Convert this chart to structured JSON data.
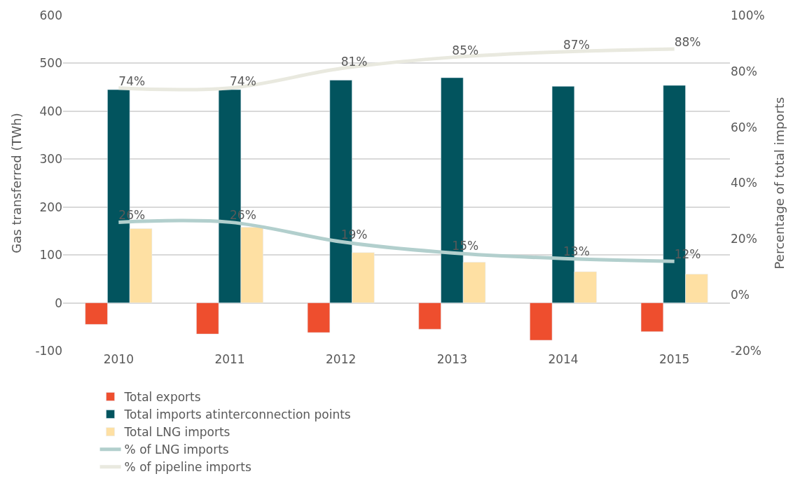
{
  "chart_data": {
    "type": "bar",
    "ylabel": "Gas transferred (TWh)",
    "y2label": "Percentage of total imports",
    "categories": [
      "2010",
      "2011",
      "2012",
      "2013",
      "2014",
      "2015"
    ],
    "series": [
      {
        "name": "Total exports",
        "color": "#ee4e2e",
        "values": [
          -45,
          -65,
          -62,
          -55,
          -78,
          -60
        ]
      },
      {
        "name": "Total imports atinterconnection points",
        "color": "#02545e",
        "values": [
          445,
          445,
          465,
          470,
          452,
          454
        ]
      },
      {
        "name": "Total LNG imports",
        "color": "#fee0a3",
        "values": [
          155,
          158,
          105,
          85,
          65,
          60
        ]
      },
      {
        "name": "% of LNG imports",
        "type": "line",
        "axis": "y2",
        "color": "#b2cfcd",
        "values": [
          26,
          26,
          19,
          15,
          13,
          12
        ],
        "value_labels": [
          "26%",
          "26%",
          "19%",
          "15%",
          "13%",
          "12%"
        ]
      },
      {
        "name": "% of pipeline imports",
        "type": "line",
        "axis": "y2",
        "color": "#e9e9df",
        "values": [
          74,
          74,
          81,
          85,
          87,
          88
        ],
        "value_labels": [
          "74%",
          "74%",
          "81%",
          "85%",
          "87%",
          "88%"
        ]
      }
    ],
    "ylim": [
      -100,
      600
    ],
    "yticks": [
      -100,
      0,
      100,
      200,
      300,
      400,
      500,
      600
    ],
    "y2lim": [
      -20,
      100
    ],
    "y2ticks": [
      {
        "value": -20,
        "label": "-20%"
      },
      {
        "value": 0,
        "label": "0%"
      },
      {
        "value": 20,
        "label": "20%"
      },
      {
        "value": 40,
        "label": "40%"
      },
      {
        "value": 60,
        "label": "60%"
      },
      {
        "value": 80,
        "label": "80%"
      },
      {
        "value": 100,
        "label": "100%"
      }
    ],
    "grid": "y",
    "legend": "bottom",
    "marker": "none",
    "line_style": "solid"
  }
}
